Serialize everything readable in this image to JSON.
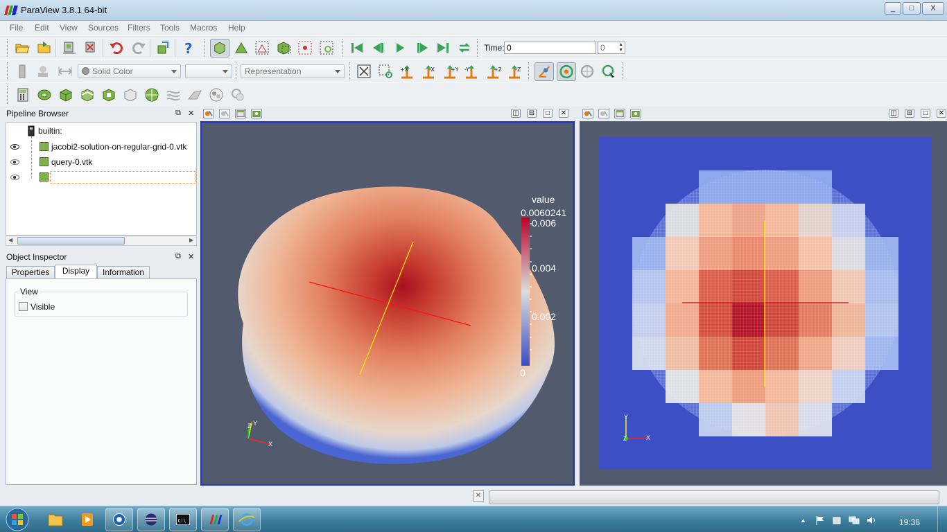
{
  "window": {
    "title": "ParaView 3.8.1 64-bit",
    "minimize": "_",
    "maximize": "□",
    "close": "X"
  },
  "menu": [
    "File",
    "Edit",
    "View",
    "Sources",
    "Filters",
    "Tools",
    "Macros",
    "Help"
  ],
  "time": {
    "label": "Time:",
    "value": "0",
    "step": "0"
  },
  "toolbar2": {
    "color_by": "Solid Color",
    "representation": "Representation"
  },
  "pipeline": {
    "title": "Pipeline Browser",
    "root": "builtin:",
    "items": [
      "jacobi2-solution-on-regular-grid-0.vtk",
      "query-0.vtk",
      ""
    ]
  },
  "inspector": {
    "title": "Object Inspector",
    "tabs": [
      "Properties",
      "Display",
      "Information"
    ],
    "group": "View",
    "visible_label": "Visible",
    "visible_checked": false
  },
  "left_view": {
    "colorbar": {
      "title": "value",
      "max_label": "0.0060241",
      "labels": [
        "0.006",
        "0.004",
        "0.002",
        "0"
      ]
    },
    "axes": {
      "x": "X",
      "y": "Y",
      "z": "Z"
    }
  },
  "right_view": {
    "axes": {
      "x": "X",
      "y": "Y",
      "z": "Z"
    }
  },
  "taskbar": {
    "clock": "19:38"
  },
  "colors": {
    "view_bg": "#525a6e",
    "right_bg": "#3d4fc4",
    "accent": "#1a2fc8"
  }
}
